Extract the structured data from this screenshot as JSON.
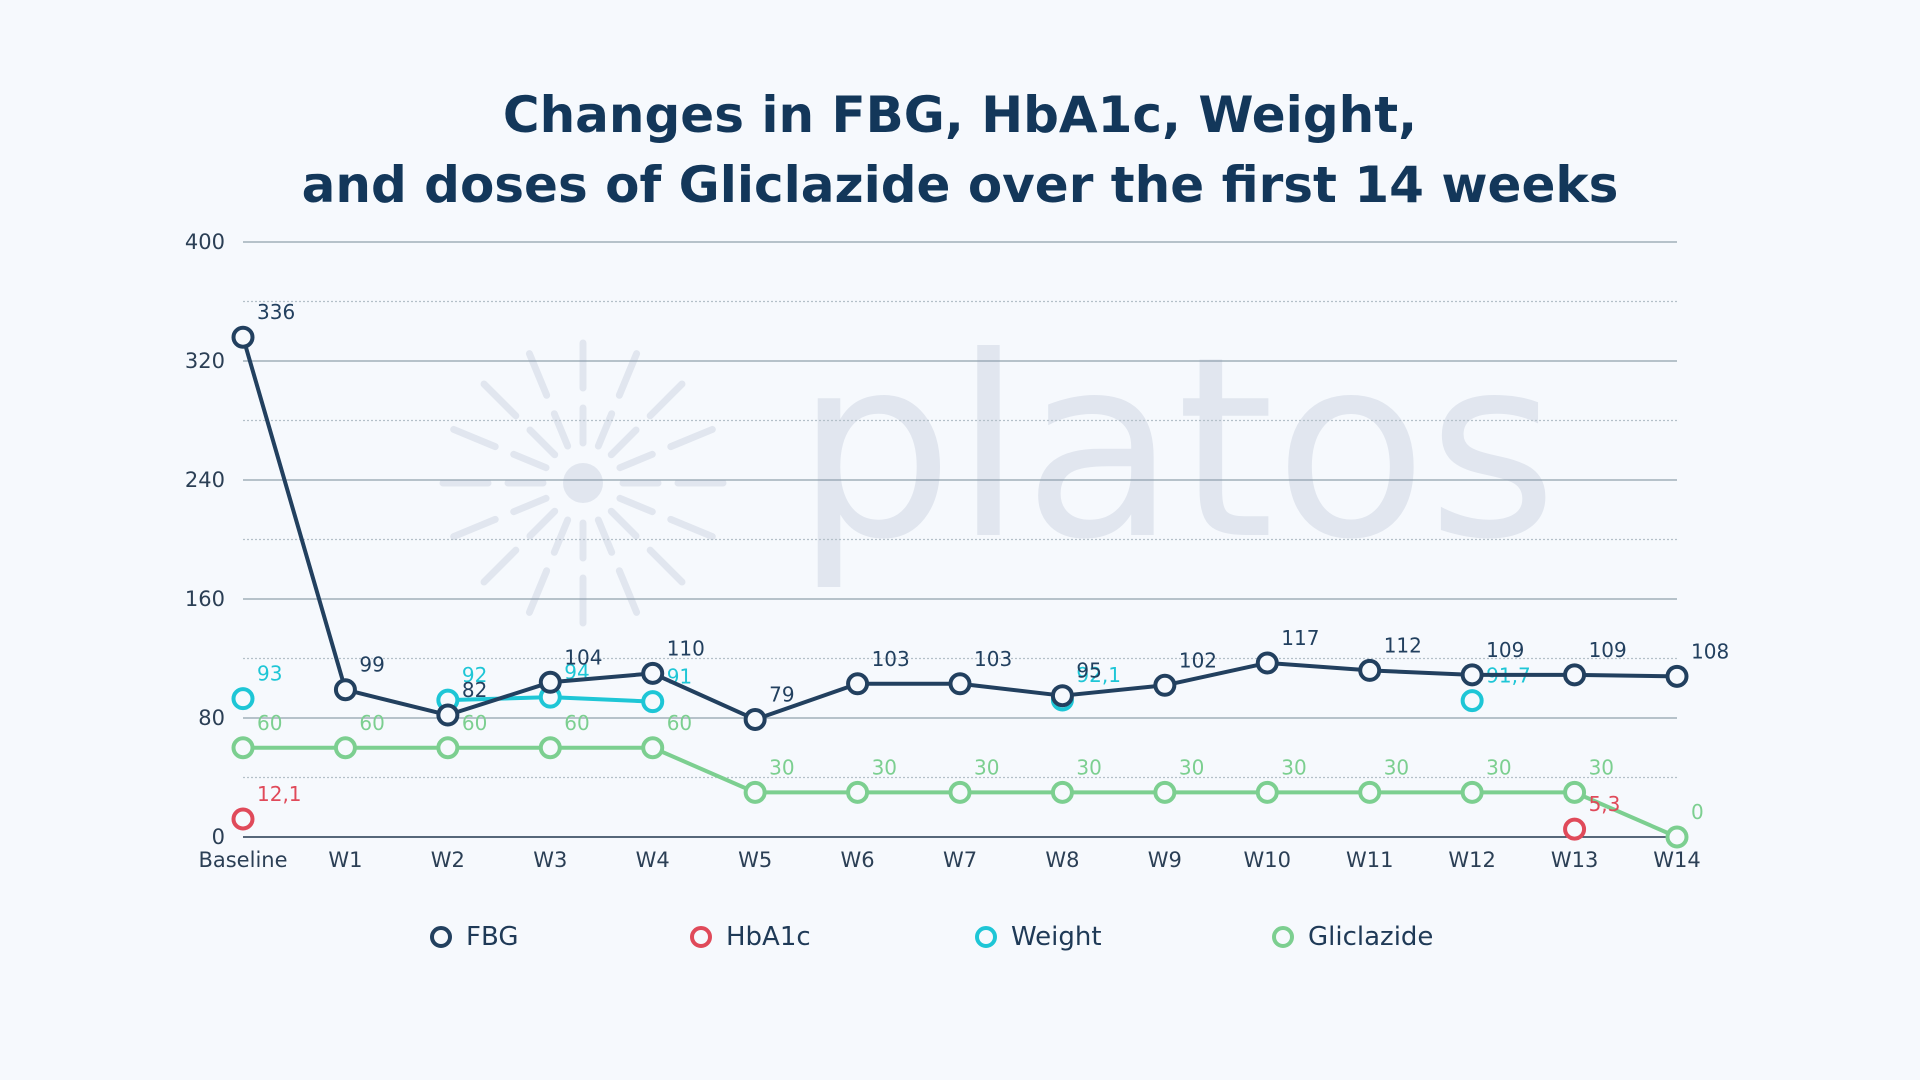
{
  "chart_data": {
    "type": "line",
    "title_lines": [
      "Changes in FBG, HbA1c, Weight,",
      "and doses of Gliclazide over the first 14 weeks"
    ],
    "watermark": "platos",
    "categories": [
      "Baseline",
      "W1",
      "W2",
      "W3",
      "W4",
      "W5",
      "W6",
      "W7",
      "W8",
      "W9",
      "W10",
      "W11",
      "W12",
      "W13",
      "W14"
    ],
    "ylim": [
      0,
      400
    ],
    "yticks": [
      0,
      80,
      160,
      240,
      320,
      400
    ],
    "grid": true,
    "legend_position": "bottom",
    "series": [
      {
        "name": "FBG",
        "color": "#22405f",
        "line": true,
        "values": [
          336,
          99,
          82,
          104,
          110,
          79,
          103,
          103,
          95,
          102,
          117,
          112,
          109,
          109,
          108
        ],
        "labels": [
          "336",
          "99",
          "82",
          "104",
          "110",
          "79",
          "103",
          "103",
          "95",
          "102",
          "117",
          "112",
          "109",
          "109",
          "108"
        ]
      },
      {
        "name": "HbA1c",
        "color": "#e04a5a",
        "line": false,
        "values": [
          12.1,
          null,
          null,
          null,
          null,
          null,
          null,
          null,
          null,
          null,
          null,
          null,
          null,
          5.3,
          null
        ],
        "labels": [
          "12,1",
          null,
          null,
          null,
          null,
          null,
          null,
          null,
          null,
          null,
          null,
          null,
          null,
          "5,3",
          null
        ]
      },
      {
        "name": "Weight",
        "color": "#1ec6d6",
        "line": true,
        "values": [
          93,
          null,
          92,
          94,
          91,
          null,
          null,
          null,
          92.1,
          null,
          null,
          null,
          91.7,
          null,
          null
        ],
        "labels": [
          "93",
          null,
          "92",
          "94",
          "91",
          null,
          null,
          null,
          "92,1",
          null,
          null,
          null,
          "91,7",
          null,
          null
        ]
      },
      {
        "name": "Gliclazide",
        "color": "#7ccf90",
        "line": true,
        "values": [
          60,
          60,
          60,
          60,
          60,
          30,
          30,
          30,
          30,
          30,
          30,
          30,
          30,
          30,
          0
        ],
        "labels": [
          "60",
          "60",
          "60",
          "60",
          "60",
          "30",
          "30",
          "30",
          "30",
          "30",
          "30",
          "30",
          "30",
          "30",
          "0"
        ]
      }
    ]
  }
}
